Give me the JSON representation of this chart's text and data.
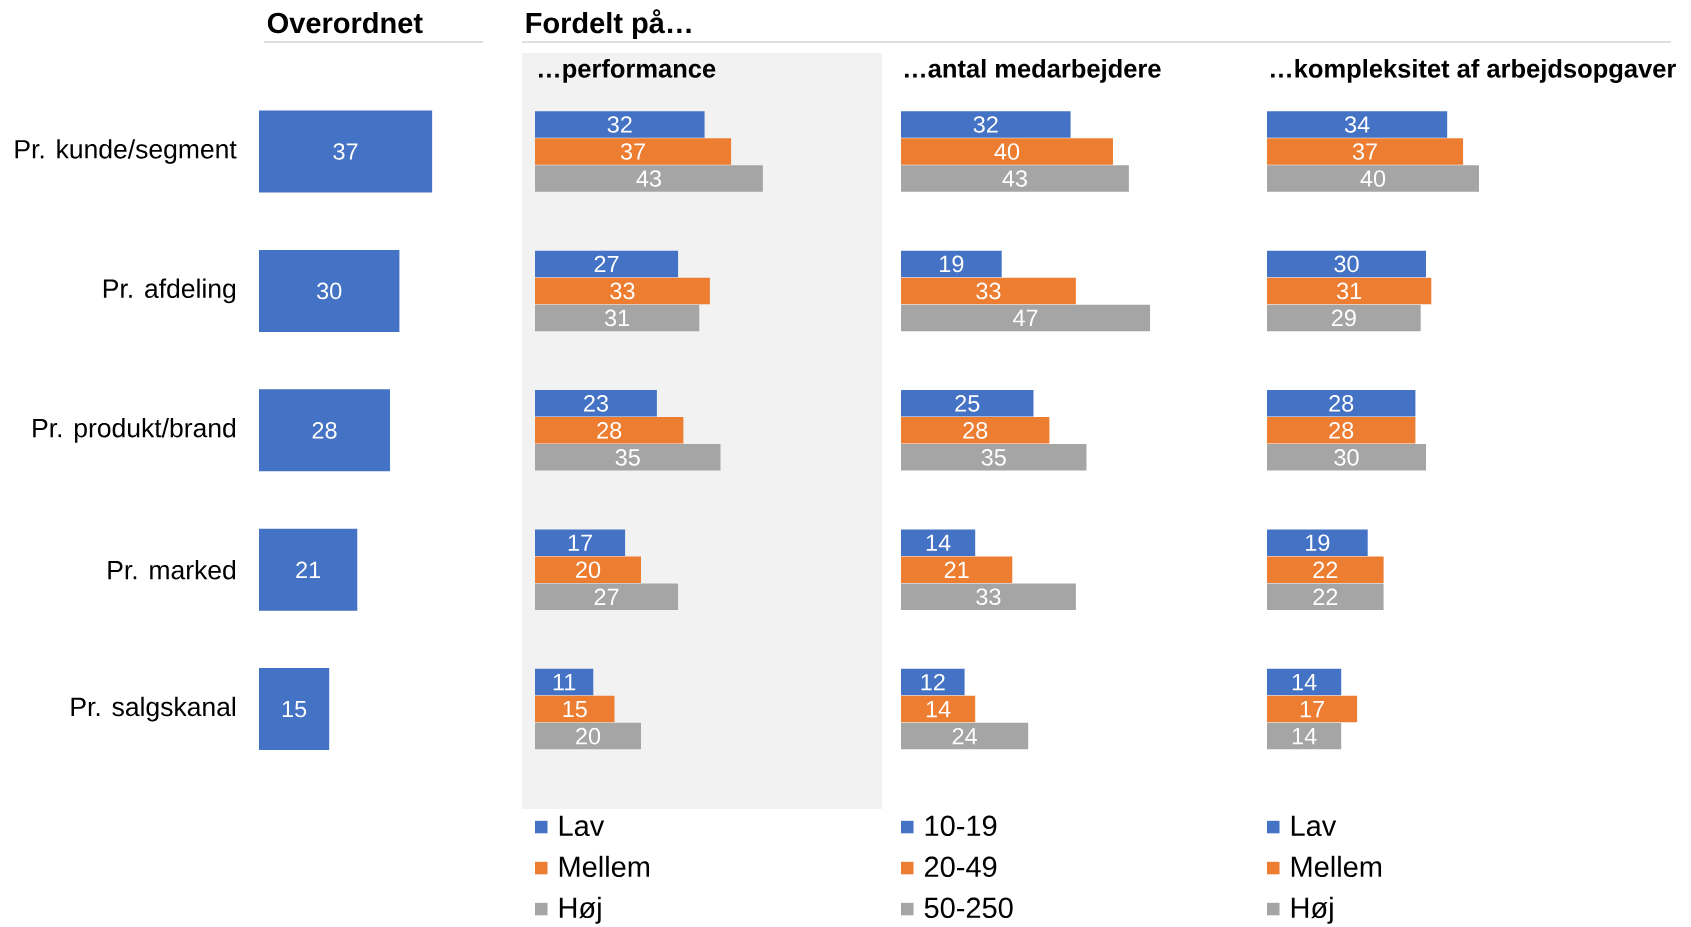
{
  "chart_data": [
    {
      "type": "bar",
      "orientation": "horizontal",
      "title": "Overordnet",
      "categories": [
        "Pr. kunde/segment",
        "Pr. afdeling",
        "Pr. produkt/brand",
        "Pr. marked",
        "Pr. salgskanal"
      ],
      "values": [
        37,
        30,
        28,
        21,
        15
      ],
      "color": "#4472c4",
      "data_labels": true,
      "tick_labels": "y"
    },
    {
      "type": "bar",
      "orientation": "horizontal",
      "title": "Fordelt på…",
      "subtitle": "…performance",
      "categories": [
        null,
        null,
        null,
        null,
        null
      ],
      "series": [
        {
          "name": "Lav",
          "color": "#4472c4",
          "values": [
            32,
            27,
            23,
            17,
            11
          ]
        },
        {
          "name": "Mellem",
          "color": "#ed7d31",
          "values": [
            37,
            33,
            28,
            20,
            15
          ]
        },
        {
          "name": "Høj",
          "color": "#a5a5a5",
          "values": [
            43,
            31,
            35,
            27,
            20
          ]
        }
      ],
      "data_labels": true,
      "legend": "bottom"
    },
    {
      "type": "bar",
      "orientation": "horizontal",
      "subtitle": "…antal medarbejdere",
      "categories": [
        null,
        null,
        null,
        null,
        null
      ],
      "series": [
        {
          "name": "10-19",
          "color": "#4472c4",
          "values": [
            32,
            19,
            25,
            14,
            12
          ]
        },
        {
          "name": "20-49",
          "color": "#ed7d31",
          "values": [
            40,
            33,
            28,
            21,
            14
          ]
        },
        {
          "name": "50-250",
          "color": "#a5a5a5",
          "values": [
            43,
            47,
            35,
            33,
            24
          ]
        }
      ],
      "data_labels": true,
      "legend": "bottom"
    },
    {
      "type": "bar",
      "orientation": "horizontal",
      "subtitle": "…kompleksitet af arbejdsopgaver",
      "categories": [
        null,
        null,
        null,
        null,
        null
      ],
      "series": [
        {
          "name": "Lav",
          "color": "#4472c4",
          "values": [
            34,
            30,
            28,
            19,
            14
          ]
        },
        {
          "name": "Mellem",
          "color": "#ed7d31",
          "values": [
            37,
            31,
            28,
            22,
            17
          ]
        },
        {
          "name": "Høj",
          "color": "#a5a5a5",
          "values": [
            40,
            29,
            30,
            22,
            14
          ]
        }
      ],
      "data_labels": true,
      "legend": "bottom"
    }
  ]
}
